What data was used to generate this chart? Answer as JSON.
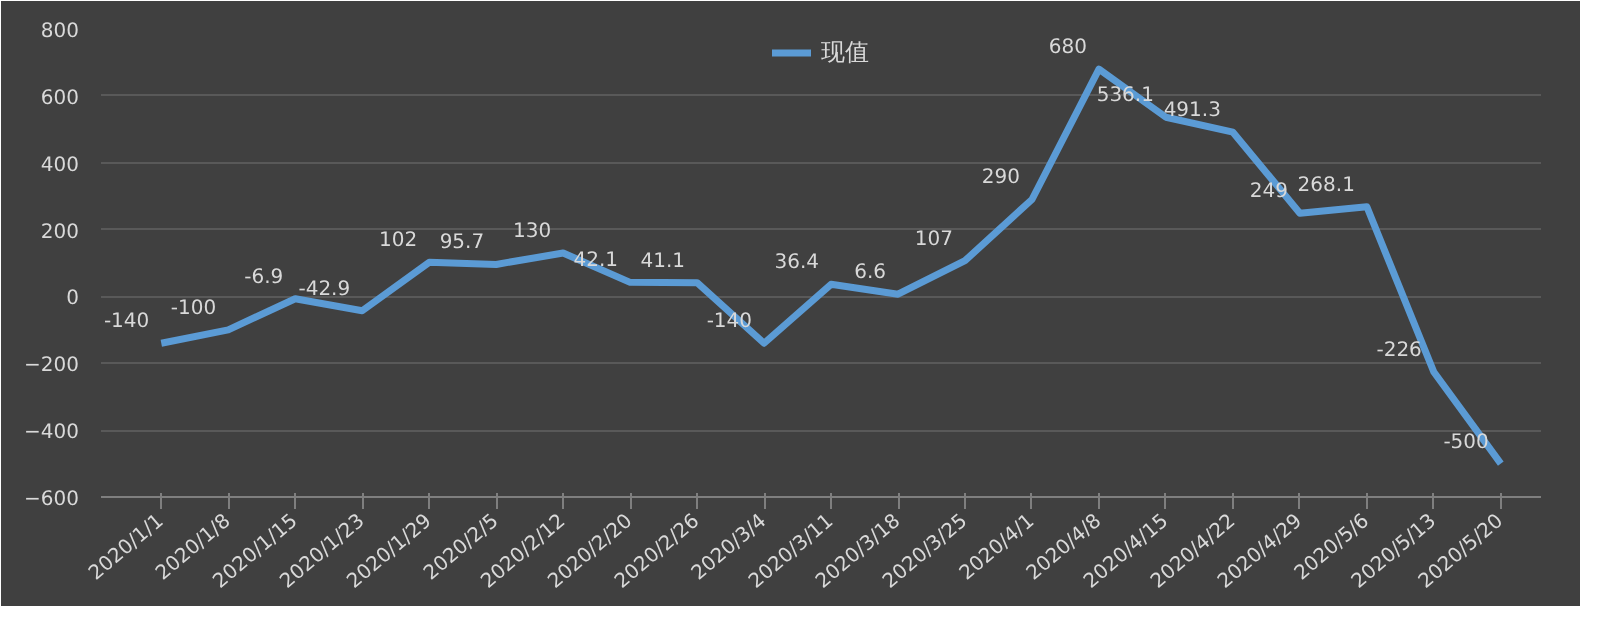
{
  "chart_data": {
    "type": "line",
    "categories": [
      "2020/1/1",
      "2020/1/8",
      "2020/1/15",
      "2020/1/23",
      "2020/1/29",
      "2020/2/5",
      "2020/2/12",
      "2020/2/20",
      "2020/2/26",
      "2020/3/4",
      "2020/3/11",
      "2020/3/18",
      "2020/3/25",
      "2020/4/1",
      "2020/4/8",
      "2020/4/15",
      "2020/4/22",
      "2020/4/29",
      "2020/5/6",
      "2020/5/13",
      "2020/5/20"
    ],
    "series": [
      {
        "name": "现值",
        "color": "#5b9bd5",
        "values": [
          -140,
          -100,
          -6.9,
          -42.9,
          102,
          95.7,
          130,
          42.1,
          41.1,
          -140,
          36.4,
          6.6,
          107,
          290,
          680,
          536.1,
          491.3,
          249,
          268.1,
          -226,
          -500
        ]
      }
    ],
    "ylim": [
      -600,
      800
    ],
    "yticks": [
      -600,
      -400,
      -200,
      0,
      200,
      400,
      600,
      800
    ],
    "grid": "y",
    "legend": "top",
    "data_labels": true,
    "marker": "none",
    "line_style": "solid"
  }
}
